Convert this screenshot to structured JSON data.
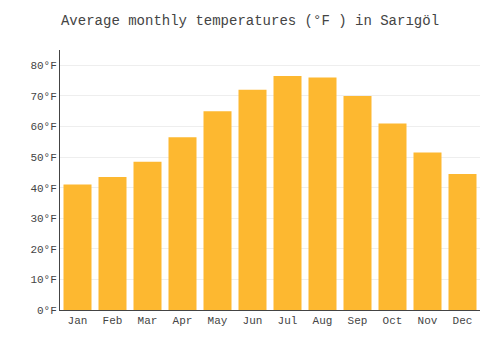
{
  "chart_data": {
    "type": "bar",
    "title": "Average monthly temperatures (°F ) in Sarıgöl",
    "categories": [
      "Jan",
      "Feb",
      "Mar",
      "Apr",
      "May",
      "Jun",
      "Jul",
      "Aug",
      "Sep",
      "Oct",
      "Nov",
      "Dec"
    ],
    "values": [
      41,
      43.5,
      48.5,
      56.5,
      65,
      72,
      76.5,
      76,
      70,
      61,
      51.5,
      44.5
    ],
    "color": "#FDB830",
    "ylim": [
      0,
      85
    ],
    "yticks": [
      {
        "value": 0,
        "label": "0°F"
      },
      {
        "value": 10,
        "label": "10°F"
      },
      {
        "value": 20,
        "label": "20°F"
      },
      {
        "value": 30,
        "label": "30°F"
      },
      {
        "value": 40,
        "label": "40°F"
      },
      {
        "value": 50,
        "label": "50°F"
      },
      {
        "value": 60,
        "label": "60°F"
      },
      {
        "value": 70,
        "label": "70°F"
      },
      {
        "value": 80,
        "label": "80°F"
      }
    ],
    "grid": true
  }
}
